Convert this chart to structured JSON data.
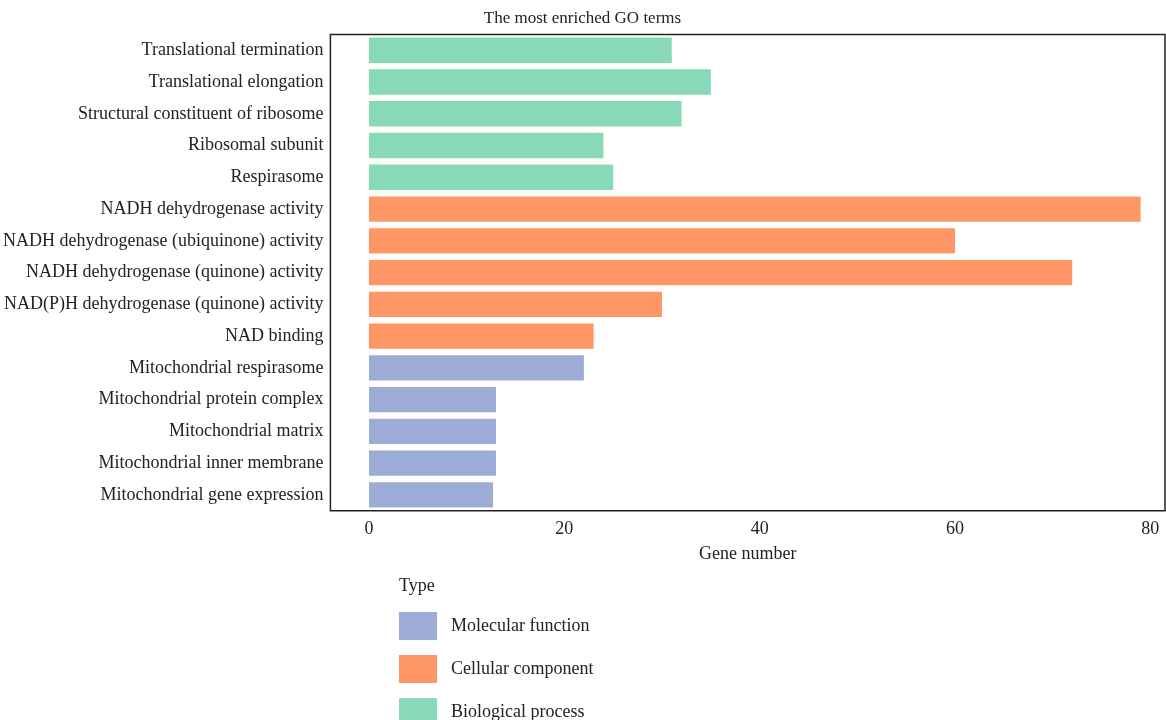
{
  "chart_data": {
    "type": "bar",
    "orientation": "horizontal",
    "title": "The most enriched GO terms",
    "xlabel": "Gene number",
    "legend_title": "Type",
    "legend": "bottom left",
    "grid": false,
    "categories": [
      "Translational termination",
      "Translational elongation",
      "Structural constituent of ribosome",
      "Ribosomal subunit",
      "Respirasome",
      "NADH dehydrogenase activity",
      "NADH dehydrogenase (ubiquinone) activity",
      "NADH dehydrogenase (quinone) activity",
      "NAD(P)H dehydrogenase (quinone) activity",
      "NAD binding",
      "Mitochondrial respirasome",
      "Mitochondrial protein complex",
      "Mitochondrial matrix",
      "Mitochondrial inner membrane",
      "Mitochondrial gene expression"
    ],
    "xlim": [
      -3.95,
      81.5
    ],
    "xticks": [
      0,
      20,
      40,
      60,
      80
    ],
    "series": [
      {
        "name": "Molecular function",
        "color": "#9dacd6",
        "values": [
          null,
          null,
          null,
          null,
          null,
          null,
          null,
          null,
          null,
          null,
          22,
          13,
          13,
          13,
          12.7
        ]
      },
      {
        "name": "Cellular component",
        "color": "#fe9665",
        "values": [
          null,
          null,
          null,
          null,
          null,
          79,
          60,
          72,
          30,
          23,
          null,
          null,
          null,
          null,
          null
        ]
      },
      {
        "name": "Biological process",
        "color": "#88d9b8",
        "values": [
          31,
          35,
          32,
          24,
          25,
          null,
          null,
          null,
          null,
          null,
          null,
          null,
          null,
          null,
          null
        ]
      }
    ]
  }
}
